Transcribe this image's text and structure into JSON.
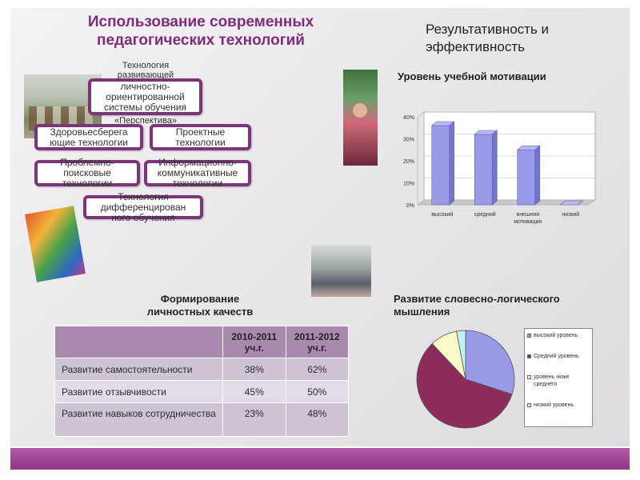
{
  "main_title": "Использование современных педагогических технологий",
  "right_title": "Результативность и эффективность",
  "technologies": [
    {
      "label": "Технология развивающей личностно-ориентированной системы обучения «Перспектива»"
    },
    {
      "label": "Здоровьесберегающие технологии"
    },
    {
      "label": "Проектные технологии"
    },
    {
      "label": "Проблемно-поисковые технологии"
    },
    {
      "label": "Информационно-коммуникативные технологии"
    },
    {
      "label": "Технология дифференцированного обучения"
    }
  ],
  "tech_lines": {
    "t1": [
      "Технология",
      "развивающей",
      "личностно-",
      "ориентированной",
      "системы обучения",
      "«Перспектива»"
    ],
    "t2": [
      "Здоровьесберега",
      "ющие технологии"
    ],
    "t3": [
      "Проектные",
      "технологии"
    ],
    "t4": [
      "Проблемно-",
      "поисковые",
      "технологии"
    ],
    "t5": [
      "Информационно-",
      "коммуникативные",
      "технологии"
    ],
    "t6": [
      "Технология",
      "дифференцирован",
      "ного обучения"
    ]
  },
  "bar_chart_title": "Уровень учебной мотивации",
  "chart_data": [
    {
      "type": "bar",
      "title": "Уровень учебной мотивации",
      "categories": [
        "высокий",
        "средний",
        "внешняя мотивация",
        "низкий"
      ],
      "values": [
        36,
        32,
        25,
        0
      ],
      "ylim": [
        0,
        40
      ],
      "yticks": [
        "0%",
        "10%",
        "20%",
        "30%",
        "40%"
      ],
      "bar_color": "#9a9ae8",
      "grid": true
    },
    {
      "type": "pie",
      "title": "Развитие словесно-логического мышления",
      "labels": [
        "высокий уровень",
        "Средний уровень",
        "уровень ниже среднего",
        "низкий уровень"
      ],
      "values": [
        30,
        58,
        9,
        3
      ],
      "colors": [
        "#9a9ae8",
        "#8c2c5a",
        "#fafac8",
        "#bff0f5"
      ],
      "legend_placement": "right"
    }
  ],
  "table": {
    "title": "Формирование личностных качеств",
    "headers": [
      "",
      "2010-2011 уч.г.",
      "2011-2012 уч.г."
    ],
    "rows": [
      {
        "label": "Развитие самостоятельности",
        "v1": "38%",
        "v2": "62%"
      },
      {
        "label": "Развитие отзывчивости",
        "v1": "45%",
        "v2": "50%"
      },
      {
        "label": "Развитие навыков сотрудничества",
        "v1": "23%",
        "v2": "48%"
      }
    ]
  },
  "pie_chart_title": "Развитие словесно-логического мышления",
  "pie_legend_lines": [
    [
      "высокий уровень"
    ],
    [
      "Средний уровень"
    ],
    [
      "уровень ниже",
      "среднего"
    ],
    [
      "низкий уровень"
    ]
  ],
  "colors": {
    "accent": "#7b3579",
    "bar": "#9a9ae8"
  }
}
